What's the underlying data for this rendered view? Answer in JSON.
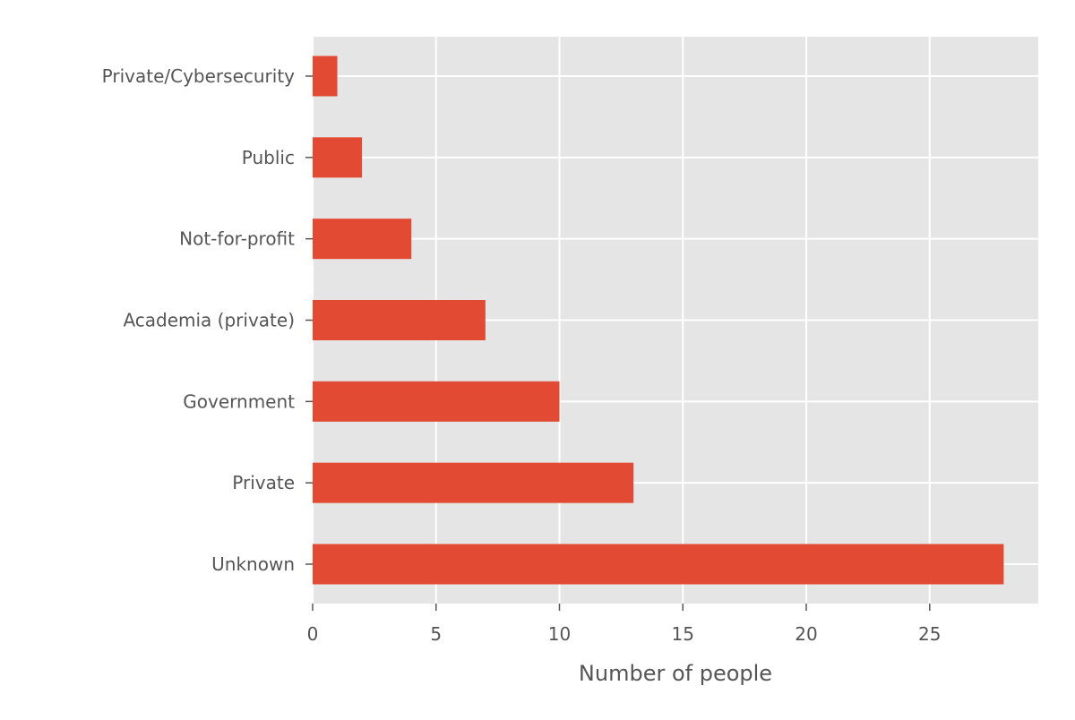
{
  "chart_data": {
    "type": "bar",
    "orientation": "horizontal",
    "title": "",
    "xlabel": "Number of people",
    "ylabel": "",
    "categories": [
      "Private/Cybersecurity",
      "Public",
      "Not-for-profit",
      "Academia (private)",
      "Government",
      "Private",
      "Unknown"
    ],
    "values": [
      1,
      2,
      4,
      7,
      10,
      13,
      28
    ],
    "xlim": [
      0,
      29.4
    ],
    "xticks": [
      0,
      5,
      10,
      15,
      20,
      25
    ],
    "grid": true,
    "legend": "none",
    "style": "ggplot"
  },
  "colors": {
    "bar": "#E24A33",
    "plot_background": "#E5E5E5",
    "grid": "#FFFFFF",
    "text": "#555555"
  }
}
